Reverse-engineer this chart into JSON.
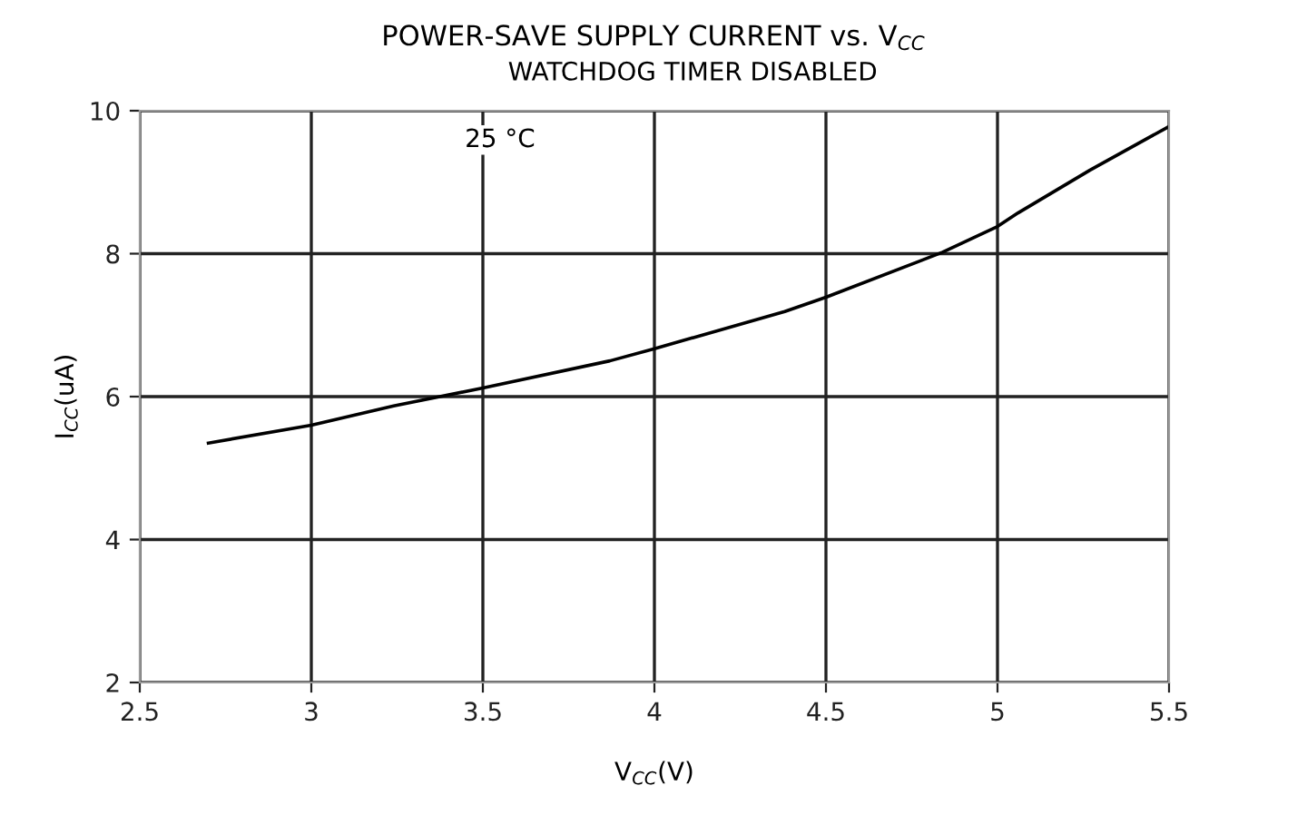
{
  "chart_data": {
    "type": "line",
    "title": "POWER-SAVE SUPPLY CURRENT vs. V$_{CC}$",
    "subtitle": "WATCHDOG TIMER DISABLED",
    "xlabel": "V$_{CC}$(V)",
    "ylabel": "I$_{CC}$(uA)",
    "annotations": [
      "25 °C"
    ],
    "x": [
      2.7,
      3.0,
      3.24,
      3.5,
      3.87,
      4.0,
      4.38,
      4.5,
      4.84,
      5.0,
      5.06,
      5.27,
      5.5
    ],
    "series": [
      {
        "color": "#000000",
        "values": [
          5.35,
          5.6,
          5.87,
          6.12,
          6.5,
          6.67,
          7.19,
          7.39,
          8.02,
          8.38,
          8.57,
          9.17,
          9.78
        ]
      }
    ],
    "xlim": [
      2.5,
      5.5
    ],
    "xticks": [
      2.5,
      3,
      3.5,
      4,
      4.5,
      5,
      5.5
    ],
    "ylim": [
      2,
      10
    ],
    "yticks": [
      2,
      4,
      6,
      8,
      10
    ],
    "grid": true,
    "marker": "none",
    "line_style": "solid"
  }
}
